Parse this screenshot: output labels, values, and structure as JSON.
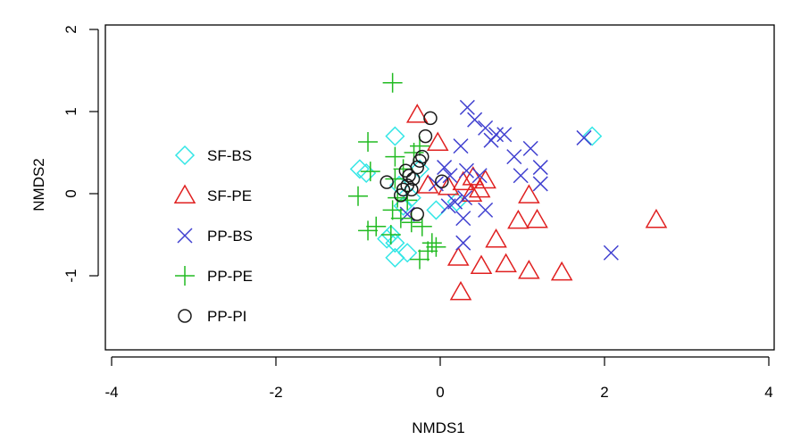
{
  "chart_data": {
    "type": "scatter",
    "title": "",
    "xlabel": "NMDS1",
    "ylabel": "NMDS2",
    "xlim": [
      -4.2,
      4.2
    ],
    "ylim": [
      -1.93,
      2.0
    ],
    "xticks": [
      -4,
      -2,
      0,
      2,
      4
    ],
    "yticks": [
      -1,
      0,
      1,
      2
    ],
    "xtick_labels": [
      "-4",
      "-2",
      "0",
      "2",
      "4"
    ],
    "ytick_labels": [
      "-1",
      "0",
      "1",
      "2"
    ],
    "grid": false,
    "legend_position": "left",
    "series": [
      {
        "name": "SF-BS",
        "marker": "diamond",
        "color": "#33e6e6",
        "points": [
          [
            -0.55,
            0.7
          ],
          [
            1.85,
            0.7
          ],
          [
            -0.98,
            0.3
          ],
          [
            -0.9,
            0.25
          ],
          [
            -0.25,
            0.3
          ],
          [
            -0.35,
            -0.05
          ],
          [
            -0.45,
            -0.15
          ],
          [
            -0.6,
            -0.5
          ],
          [
            -0.65,
            -0.55
          ],
          [
            -0.55,
            -0.6
          ],
          [
            -0.55,
            -0.78
          ],
          [
            -0.4,
            -0.72
          ],
          [
            -0.05,
            -0.2
          ],
          [
            0.2,
            -0.1
          ],
          [
            -0.5,
            0.1
          ]
        ]
      },
      {
        "name": "SF-PE",
        "marker": "triangle",
        "color": "#e02020",
        "points": [
          [
            -0.28,
            0.96
          ],
          [
            -0.03,
            0.62
          ],
          [
            0.28,
            0.14
          ],
          [
            0.4,
            0.2
          ],
          [
            0.55,
            0.16
          ],
          [
            0.48,
            0.05
          ],
          [
            0.38,
            0.0
          ],
          [
            -0.15,
            0.1
          ],
          [
            0.1,
            0.08
          ],
          [
            1.08,
            -0.02
          ],
          [
            0.95,
            -0.33
          ],
          [
            1.18,
            -0.32
          ],
          [
            0.68,
            -0.56
          ],
          [
            0.22,
            -0.78
          ],
          [
            0.5,
            -0.88
          ],
          [
            0.8,
            -0.86
          ],
          [
            1.08,
            -0.94
          ],
          [
            1.48,
            -0.96
          ],
          [
            0.25,
            -1.2
          ],
          [
            2.63,
            -0.32
          ]
        ]
      },
      {
        "name": "PP-BS",
        "marker": "x",
        "color": "#4040d0",
        "points": [
          [
            0.33,
            1.05
          ],
          [
            0.42,
            0.9
          ],
          [
            0.55,
            0.8
          ],
          [
            0.68,
            0.72
          ],
          [
            0.78,
            0.72
          ],
          [
            0.62,
            0.65
          ],
          [
            1.1,
            0.55
          ],
          [
            0.9,
            0.45
          ],
          [
            1.22,
            0.32
          ],
          [
            1.22,
            0.12
          ],
          [
            0.98,
            0.22
          ],
          [
            0.25,
            0.58
          ],
          [
            0.48,
            0.22
          ],
          [
            0.32,
            0.28
          ],
          [
            0.12,
            0.22
          ],
          [
            0.05,
            0.32
          ],
          [
            -0.05,
            0.12
          ],
          [
            0.18,
            -0.1
          ],
          [
            0.55,
            -0.2
          ],
          [
            0.3,
            -0.05
          ],
          [
            0.1,
            -0.15
          ],
          [
            0.28,
            -0.3
          ],
          [
            0.28,
            -0.6
          ],
          [
            -0.4,
            -0.25
          ],
          [
            1.75,
            0.68
          ],
          [
            2.08,
            -0.72
          ]
        ]
      },
      {
        "name": "PP-PE",
        "marker": "plus",
        "color": "#22bb22",
        "points": [
          [
            -0.58,
            1.35
          ],
          [
            -0.88,
            0.63
          ],
          [
            -0.55,
            0.45
          ],
          [
            -0.32,
            0.5
          ],
          [
            -0.25,
            0.58
          ],
          [
            -0.85,
            0.27
          ],
          [
            -0.45,
            0.3
          ],
          [
            -0.55,
            0.18
          ],
          [
            -0.52,
            -0.05
          ],
          [
            -1.0,
            -0.03
          ],
          [
            -0.4,
            -0.08
          ],
          [
            -0.58,
            -0.2
          ],
          [
            -0.48,
            -0.3
          ],
          [
            -0.35,
            -0.35
          ],
          [
            -0.78,
            -0.4
          ],
          [
            -0.88,
            -0.45
          ],
          [
            -0.22,
            -0.4
          ],
          [
            -0.1,
            -0.6
          ],
          [
            -0.05,
            -0.65
          ],
          [
            -0.15,
            -0.7
          ],
          [
            -0.25,
            -0.8
          ],
          [
            -0.6,
            -0.5
          ]
        ]
      },
      {
        "name": "PP-PI",
        "marker": "circle",
        "color": "#1a1a1a",
        "points": [
          [
            -0.12,
            0.92
          ],
          [
            -0.18,
            0.7
          ],
          [
            -0.22,
            0.45
          ],
          [
            -0.25,
            0.4
          ],
          [
            -0.28,
            0.32
          ],
          [
            -0.42,
            0.28
          ],
          [
            -0.38,
            0.22
          ],
          [
            -0.33,
            0.18
          ],
          [
            -0.4,
            0.1
          ],
          [
            -0.45,
            0.05
          ],
          [
            -0.35,
            0.05
          ],
          [
            -0.48,
            -0.02
          ],
          [
            -0.65,
            0.14
          ],
          [
            -0.28,
            -0.25
          ],
          [
            0.02,
            0.15
          ]
        ]
      }
    ]
  }
}
